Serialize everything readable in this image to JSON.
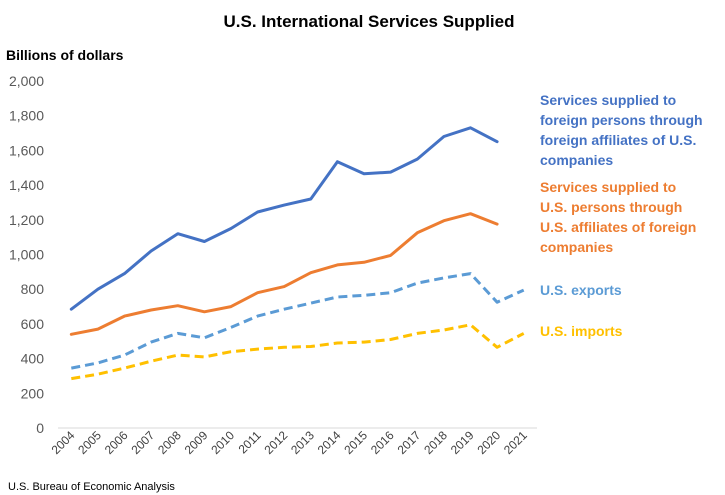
{
  "chart_data": {
    "type": "line",
    "title": "U.S. International Services Supplied",
    "ylabel": "Billions of dollars",
    "xlabel": "",
    "source": "U.S. Bureau of Economic Analysis",
    "ylim": [
      0,
      2000
    ],
    "yticks": [
      "0",
      "200",
      "400",
      "600",
      "800",
      "1,000",
      "1,200",
      "1,400",
      "1,600",
      "1,800",
      "2,000"
    ],
    "ytick_values": [
      0,
      200,
      400,
      600,
      800,
      1000,
      1200,
      1400,
      1600,
      1800,
      2000
    ],
    "categories": [
      "2004",
      "2005",
      "2006",
      "2007",
      "2008",
      "2009",
      "2010",
      "2011",
      "2012",
      "2013",
      "2014",
      "2015",
      "2016",
      "2017",
      "2018",
      "2019",
      "2020",
      "2021"
    ],
    "grid": false,
    "legend": "direct labels at right end of series",
    "series": [
      {
        "name": "Services supplied to foreign persons through foreign affiliates of U.S. companies",
        "label_lines": [
          "Services supplied to",
          "foreign persons through",
          "foreign affiliates of U.S.",
          "companies"
        ],
        "color": "#4472C4",
        "style": "solid",
        "values": [
          685,
          800,
          890,
          1020,
          1120,
          1075,
          1150,
          1245,
          1285,
          1320,
          1535,
          1465,
          1475,
          1550,
          1680,
          1730,
          1650,
          null
        ]
      },
      {
        "name": "Services supplied to U.S. persons through U.S. affiliates of foreign companies",
        "label_lines": [
          "Services supplied to",
          "U.S. persons through",
          "U.S. affiliates of foreign",
          "companies"
        ],
        "color": "#ED7D31",
        "style": "solid",
        "values": [
          540,
          570,
          645,
          680,
          705,
          670,
          700,
          780,
          815,
          895,
          940,
          955,
          995,
          1125,
          1195,
          1235,
          1175,
          null
        ]
      },
      {
        "name": "U.S. exports",
        "label_lines": [
          "U.S. exports"
        ],
        "color": "#5B9BD5",
        "style": "dashed",
        "values": [
          345,
          375,
          420,
          495,
          545,
          520,
          580,
          645,
          685,
          720,
          755,
          765,
          780,
          835,
          865,
          890,
          725,
          795
        ]
      },
      {
        "name": "U.S. imports",
        "label_lines": [
          "U.S. imports"
        ],
        "color": "#FFC000",
        "style": "dashed",
        "values": [
          285,
          310,
          345,
          385,
          420,
          410,
          440,
          455,
          465,
          470,
          490,
          495,
          510,
          545,
          565,
          595,
          465,
          545
        ]
      }
    ]
  }
}
